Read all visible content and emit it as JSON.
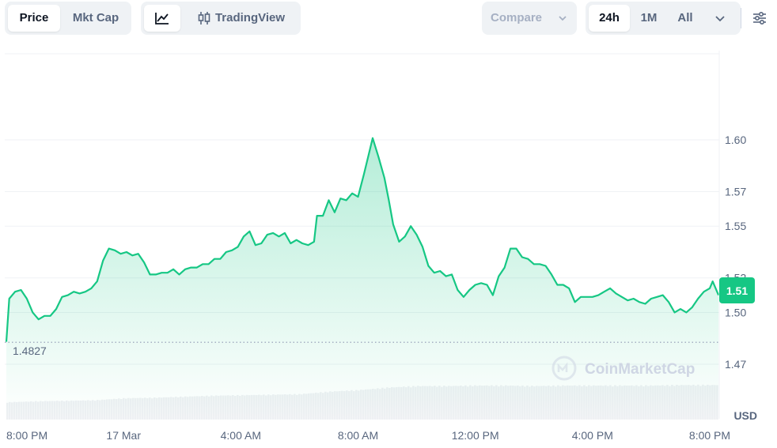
{
  "toolbar": {
    "price_label": "Price",
    "mktcap_label": "Mkt Cap",
    "tradingview_label": "TradingView",
    "compare_label": "Compare",
    "range_24h": "24h",
    "range_1m": "1M",
    "range_all": "All"
  },
  "colors": {
    "line": "#16c784",
    "fill": "#16c784",
    "baseline": "#a6b0c3",
    "volume": "#eef0f3",
    "grid": "#eff2f5",
    "text": "#58667e"
  },
  "chart_data": {
    "type": "area",
    "x_label_unit": "USD",
    "open_price": "1.4827",
    "current_price": "1.51",
    "watermark": "CoinMarketCap",
    "y_ticks": [
      1.6,
      1.57,
      1.55,
      1.52,
      1.5,
      1.47
    ],
    "y_tick_labels": [
      "1.60",
      "1.57",
      "1.55",
      "1.52",
      "1.50",
      "1.47"
    ],
    "x_tick_labels": [
      "8:00 PM",
      "17 Mar",
      "4:00 AM",
      "8:00 AM",
      "12:00 PM",
      "4:00 PM",
      "8:00 PM"
    ],
    "x_tick_hours": [
      0,
      4,
      8,
      12,
      16,
      20,
      24
    ],
    "series": [
      {
        "values": [
          [
            0.0,
            1.483
          ],
          [
            0.1,
            1.508
          ],
          [
            0.3,
            1.512
          ],
          [
            0.5,
            1.513
          ],
          [
            0.7,
            1.508
          ],
          [
            0.9,
            1.5
          ],
          [
            1.1,
            1.496
          ],
          [
            1.3,
            1.498
          ],
          [
            1.5,
            1.498
          ],
          [
            1.7,
            1.502
          ],
          [
            1.9,
            1.509
          ],
          [
            2.1,
            1.51
          ],
          [
            2.3,
            1.512
          ],
          [
            2.5,
            1.511
          ],
          [
            2.7,
            1.512
          ],
          [
            2.9,
            1.514
          ],
          [
            3.1,
            1.518
          ],
          [
            3.3,
            1.53
          ],
          [
            3.5,
            1.537
          ],
          [
            3.7,
            1.536
          ],
          [
            3.9,
            1.534
          ],
          [
            4.1,
            1.535
          ],
          [
            4.3,
            1.533
          ],
          [
            4.5,
            1.534
          ],
          [
            4.7,
            1.529
          ],
          [
            4.9,
            1.522
          ],
          [
            5.1,
            1.522
          ],
          [
            5.3,
            1.523
          ],
          [
            5.5,
            1.523
          ],
          [
            5.7,
            1.525
          ],
          [
            5.9,
            1.522
          ],
          [
            6.1,
            1.525
          ],
          [
            6.3,
            1.526
          ],
          [
            6.5,
            1.526
          ],
          [
            6.7,
            1.528
          ],
          [
            6.9,
            1.528
          ],
          [
            7.1,
            1.531
          ],
          [
            7.3,
            1.531
          ],
          [
            7.5,
            1.535
          ],
          [
            7.7,
            1.536
          ],
          [
            7.9,
            1.538
          ],
          [
            8.1,
            1.544
          ],
          [
            8.3,
            1.547
          ],
          [
            8.5,
            1.539
          ],
          [
            8.7,
            1.54
          ],
          [
            8.9,
            1.545
          ],
          [
            9.1,
            1.546
          ],
          [
            9.3,
            1.544
          ],
          [
            9.5,
            1.546
          ],
          [
            9.7,
            1.54
          ],
          [
            9.9,
            1.542
          ],
          [
            10.1,
            1.54
          ],
          [
            10.3,
            1.539
          ],
          [
            10.5,
            1.541
          ],
          [
            10.6,
            1.556
          ],
          [
            10.8,
            1.556
          ],
          [
            11.0,
            1.565
          ],
          [
            11.2,
            1.558
          ],
          [
            11.4,
            1.566
          ],
          [
            11.6,
            1.565
          ],
          [
            11.8,
            1.569
          ],
          [
            12.0,
            1.567
          ],
          [
            12.2,
            1.58
          ],
          [
            12.4,
            1.594
          ],
          [
            12.5,
            1.601
          ],
          [
            12.7,
            1.59
          ],
          [
            12.9,
            1.578
          ],
          [
            13.05,
            1.565
          ],
          [
            13.2,
            1.551
          ],
          [
            13.4,
            1.541
          ],
          [
            13.6,
            1.544
          ],
          [
            13.8,
            1.55
          ],
          [
            14.0,
            1.545
          ],
          [
            14.2,
            1.538
          ],
          [
            14.4,
            1.527
          ],
          [
            14.6,
            1.523
          ],
          [
            14.8,
            1.524
          ],
          [
            15.0,
            1.521
          ],
          [
            15.2,
            1.522
          ],
          [
            15.4,
            1.513
          ],
          [
            15.6,
            1.509
          ],
          [
            15.8,
            1.513
          ],
          [
            16.0,
            1.516
          ],
          [
            16.2,
            1.517
          ],
          [
            16.4,
            1.516
          ],
          [
            16.6,
            1.51
          ],
          [
            16.8,
            1.521
          ],
          [
            17.0,
            1.526
          ],
          [
            17.2,
            1.537
          ],
          [
            17.4,
            1.537
          ],
          [
            17.6,
            1.532
          ],
          [
            17.8,
            1.531
          ],
          [
            18.0,
            1.528
          ],
          [
            18.2,
            1.528
          ],
          [
            18.4,
            1.527
          ],
          [
            18.6,
            1.522
          ],
          [
            18.8,
            1.516
          ],
          [
            19.0,
            1.516
          ],
          [
            19.2,
            1.514
          ],
          [
            19.4,
            1.506
          ],
          [
            19.6,
            1.509
          ],
          [
            19.8,
            1.509
          ],
          [
            20.0,
            1.509
          ],
          [
            20.2,
            1.51
          ],
          [
            20.4,
            1.512
          ],
          [
            20.6,
            1.514
          ],
          [
            20.8,
            1.511
          ],
          [
            21.0,
            1.509
          ],
          [
            21.2,
            1.507
          ],
          [
            21.4,
            1.508
          ],
          [
            21.6,
            1.506
          ],
          [
            21.8,
            1.505
          ],
          [
            22.0,
            1.508
          ],
          [
            22.2,
            1.509
          ],
          [
            22.4,
            1.51
          ],
          [
            22.6,
            1.506
          ],
          [
            22.8,
            1.5
          ],
          [
            23.0,
            1.502
          ],
          [
            23.2,
            1.5
          ],
          [
            23.4,
            1.503
          ],
          [
            23.6,
            1.508
          ],
          [
            23.8,
            1.512
          ],
          [
            24.0,
            1.514
          ],
          [
            24.1,
            1.518
          ],
          [
            24.3,
            1.51
          ]
        ]
      }
    ],
    "volume": [
      [
        0,
        0.34
      ],
      [
        1,
        0.36
      ],
      [
        2,
        0.37
      ],
      [
        3,
        0.38
      ],
      [
        4,
        0.42
      ],
      [
        5,
        0.43
      ],
      [
        6,
        0.45
      ],
      [
        7,
        0.47
      ],
      [
        8,
        0.48
      ],
      [
        9,
        0.49
      ],
      [
        10,
        0.5
      ],
      [
        11,
        0.55
      ],
      [
        12,
        0.58
      ],
      [
        13,
        0.63
      ],
      [
        14,
        0.66
      ],
      [
        15,
        0.66
      ],
      [
        16,
        0.67
      ],
      [
        17,
        0.67
      ],
      [
        18,
        0.66
      ],
      [
        19,
        0.67
      ],
      [
        20,
        0.67
      ],
      [
        21,
        0.67
      ],
      [
        22,
        0.67
      ],
      [
        23,
        0.68
      ],
      [
        24,
        0.68
      ]
    ]
  }
}
